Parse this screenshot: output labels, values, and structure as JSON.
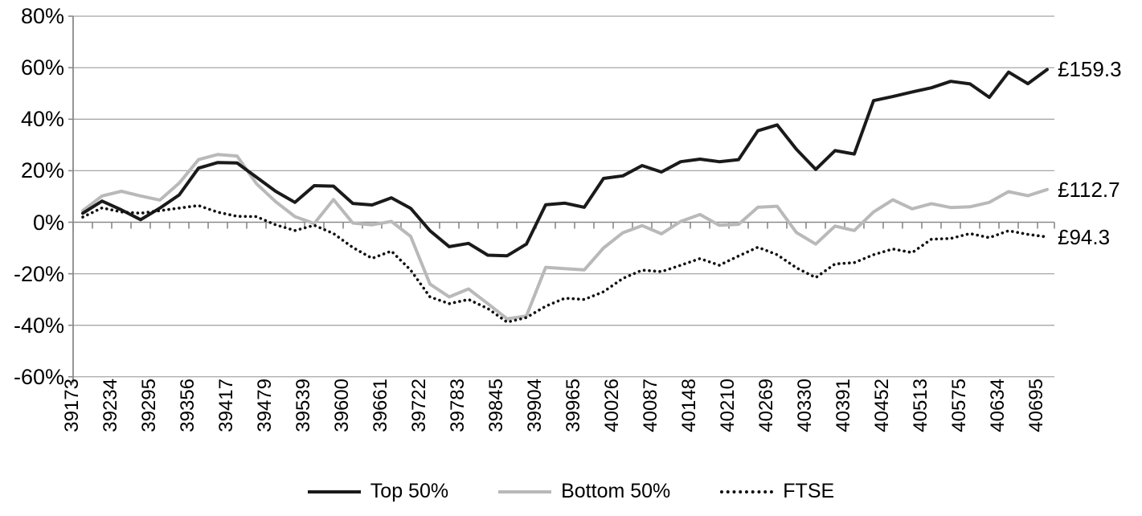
{
  "chart_data": {
    "type": "line",
    "title": "",
    "xlabel": "",
    "ylabel": "",
    "grid": "horizontal",
    "y_axis": {
      "min": -60,
      "max": 80,
      "step": 20,
      "unit": "%"
    },
    "y_tick_labels": [
      "80%",
      "60%",
      "40%",
      "20%",
      "0%",
      "-20%",
      "-40%",
      "-60%"
    ],
    "x_tick_labels": [
      "39173",
      "39234",
      "39295",
      "39356",
      "39417",
      "39479",
      "39539",
      "39600",
      "39661",
      "39722",
      "39783",
      "39845",
      "39904",
      "39965",
      "40026",
      "40087",
      "40148",
      "40210",
      "40269",
      "40330",
      "40391",
      "40452",
      "40513",
      "40575",
      "40634",
      "40695"
    ],
    "x_note": "labels mark every second monthly data point",
    "legend": {
      "position": "bottom"
    },
    "series": [
      {
        "name": "Top 50%",
        "style": "solid",
        "color": "#1a1a1a",
        "values": [
          3.5,
          8.2,
          4.8,
          1.0,
          5.5,
          10.6,
          21.0,
          23.2,
          23.0,
          17.5,
          12.0,
          7.7,
          14.2,
          14.0,
          7.3,
          6.7,
          9.5,
          5.4,
          -3.3,
          -9.5,
          -8.2,
          -12.8,
          -13.0,
          -8.5,
          6.8,
          7.4,
          5.8,
          17.0,
          18.0,
          22.0,
          19.5,
          23.5,
          24.5,
          23.5,
          24.3,
          35.5,
          37.8,
          28.3,
          20.5,
          27.8,
          26.5,
          47.2,
          48.8,
          50.6,
          52.2,
          54.7,
          53.7,
          48.5,
          58.3,
          53.8,
          59.3
        ]
      },
      {
        "name": "Bottom 50%",
        "style": "solid",
        "color": "#b9b9b9",
        "values": [
          4.5,
          10.2,
          12.0,
          10.2,
          8.6,
          15.2,
          24.3,
          26.3,
          25.7,
          15.0,
          8.0,
          2.2,
          -0.5,
          8.8,
          -0.3,
          -1.0,
          0.3,
          -5.5,
          -24.0,
          -29.0,
          -25.9,
          -31.6,
          -37.5,
          -36.4,
          -17.5,
          -18.0,
          -18.5,
          -10.0,
          -4.1,
          -1.3,
          -4.5,
          0.3,
          3.0,
          -1.2,
          -0.8,
          5.8,
          6.2,
          -4.0,
          -8.5,
          -1.5,
          -3.2,
          4.0,
          8.7,
          5.2,
          7.2,
          5.7,
          6.0,
          7.7,
          11.9,
          10.3,
          12.7
        ]
      },
      {
        "name": "FTSE",
        "style": "dotted",
        "color": "#111111",
        "values": [
          2.0,
          5.6,
          4.0,
          3.5,
          4.5,
          5.5,
          6.5,
          3.9,
          2.3,
          2.2,
          -1.0,
          -3.2,
          -1.2,
          -4.4,
          -9.8,
          -14.0,
          -11.2,
          -18.6,
          -29.0,
          -31.6,
          -30.0,
          -33.5,
          -38.8,
          -37.0,
          -32.6,
          -29.5,
          -30.0,
          -27.0,
          -21.8,
          -18.6,
          -19.2,
          -16.7,
          -14.1,
          -16.7,
          -13.1,
          -9.7,
          -12.6,
          -17.7,
          -21.5,
          -16.2,
          -15.7,
          -12.6,
          -10.4,
          -11.8,
          -6.6,
          -6.3,
          -4.4,
          -6.0,
          -3.3,
          -4.7,
          -5.7
        ]
      }
    ],
    "end_labels": [
      {
        "text": "£159.3",
        "value": 59.3,
        "series": "Top 50%"
      },
      {
        "text": "£112.7",
        "value": 12.7,
        "series": "Bottom 50%"
      },
      {
        "text": "£94.3",
        "value": -5.7,
        "series": "FTSE"
      }
    ],
    "colors": {
      "gridline": "#a6a6a6",
      "axis": "#898989",
      "text": "#000000",
      "background": "#ffffff"
    }
  }
}
